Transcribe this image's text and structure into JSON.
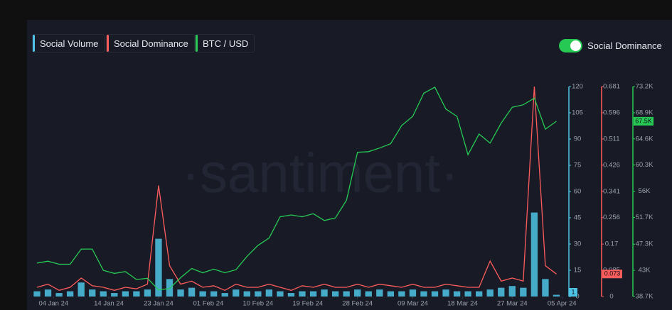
{
  "chart_data": {
    "type": "combo",
    "watermark": "·santiment·",
    "toggle_label": "Social Dominance",
    "x": [
      "01 Jan 24",
      "03 Jan 24",
      "05 Jan 24",
      "07 Jan 24",
      "09 Jan 24",
      "11 Jan 24",
      "13 Jan 24",
      "15 Jan 24",
      "17 Jan 24",
      "19 Jan 24",
      "21 Jan 24",
      "23 Jan 24",
      "25 Jan 24",
      "27 Jan 24",
      "29 Jan 24",
      "31 Jan 24",
      "02 Feb 24",
      "04 Feb 24",
      "06 Feb 24",
      "08 Feb 24",
      "10 Feb 24",
      "12 Feb 24",
      "14 Feb 24",
      "16 Feb 24",
      "18 Feb 24",
      "20 Feb 24",
      "22 Feb 24",
      "24 Feb 24",
      "26 Feb 24",
      "28 Feb 24",
      "01 Mar 24",
      "03 Mar 24",
      "05 Mar 24",
      "07 Mar 24",
      "09 Mar 24",
      "11 Mar 24",
      "13 Mar 24",
      "15 Mar 24",
      "17 Mar 24",
      "19 Mar 24",
      "21 Mar 24",
      "23 Mar 24",
      "25 Mar 24",
      "27 Mar 24",
      "29 Mar 24",
      "31 Mar 24",
      "02 Apr 24",
      "04 Apr 24"
    ],
    "xlim": [
      "01 Jan 24",
      "06 Apr 24"
    ],
    "xticks": [
      "04 Jan 24",
      "14 Jan 24",
      "23 Jan 24",
      "01 Feb 24",
      "10 Feb 24",
      "19 Feb 24",
      "28 Feb 24",
      "09 Mar 24",
      "18 Mar 24",
      "27 Mar 24",
      "05 Apr 24"
    ],
    "ylim": [
      0,
      120
    ],
    "yticks": [
      0,
      15,
      30,
      45,
      60,
      75,
      90,
      105,
      120
    ],
    "y2lim": [
      0,
      0.681
    ],
    "y2ticks": [
      0,
      0.085,
      0.17,
      0.256,
      0.341,
      0.426,
      0.511,
      0.596,
      0.681
    ],
    "y3lim": [
      38700,
      73200
    ],
    "y3ticks": [
      {
        "value": 38700,
        "label": "38.7K"
      },
      {
        "value": 43000,
        "label": "43K"
      },
      {
        "value": 47300,
        "label": "47.3K"
      },
      {
        "value": 51700,
        "label": "51.7K"
      },
      {
        "value": 56000,
        "label": "56K"
      },
      {
        "value": 60300,
        "label": "60.3K"
      },
      {
        "value": 64600,
        "label": "64.6K"
      },
      {
        "value": 68900,
        "label": "68.9K"
      },
      {
        "value": 73200,
        "label": "73.2K"
      }
    ],
    "series": [
      {
        "name": "Social Volume",
        "type": "bar",
        "axis": "y",
        "color": "#4fc3e6",
        "values": [
          3,
          4,
          2,
          3,
          8,
          4,
          3,
          2,
          3,
          3,
          4,
          33,
          10,
          4,
          5,
          3,
          3,
          2,
          4,
          3,
          3,
          4,
          3,
          2,
          3,
          3,
          4,
          3,
          3,
          4,
          3,
          4,
          3,
          3,
          4,
          3,
          3,
          4,
          3,
          3,
          3,
          4,
          5,
          6,
          5,
          48,
          10,
          1
        ],
        "last_value": 1
      },
      {
        "name": "Social Dominance",
        "type": "line",
        "axis": "y2",
        "color": "#ff5c5c",
        "values": [
          0.03,
          0.04,
          0.02,
          0.03,
          0.06,
          0.035,
          0.03,
          0.02,
          0.03,
          0.025,
          0.04,
          0.36,
          0.1,
          0.04,
          0.05,
          0.03,
          0.035,
          0.02,
          0.04,
          0.03,
          0.03,
          0.04,
          0.03,
          0.02,
          0.035,
          0.03,
          0.04,
          0.03,
          0.03,
          0.04,
          0.03,
          0.04,
          0.035,
          0.03,
          0.04,
          0.03,
          0.03,
          0.04,
          0.035,
          0.03,
          0.03,
          0.115,
          0.05,
          0.06,
          0.05,
          0.681,
          0.1,
          0.073
        ],
        "last_value": 0.073
      },
      {
        "name": "BTC / USD",
        "type": "line",
        "axis": "y3",
        "color": "#26c953",
        "values": [
          44200,
          44500,
          44000,
          44000,
          46500,
          46500,
          43000,
          42500,
          42800,
          41500,
          41700,
          39800,
          40000,
          41800,
          43300,
          42600,
          43200,
          42600,
          43100,
          45300,
          47100,
          48300,
          51800,
          52100,
          51800,
          52300,
          51200,
          51600,
          54500,
          62400,
          62500,
          63100,
          63800,
          66800,
          68300,
          72100,
          73100,
          69500,
          68300,
          62000,
          65400,
          63900,
          67200,
          69800,
          70200,
          71300,
          66200,
          67500
        ],
        "last_value": {
          "value": 67500,
          "label": "67.5K"
        }
      }
    ]
  }
}
